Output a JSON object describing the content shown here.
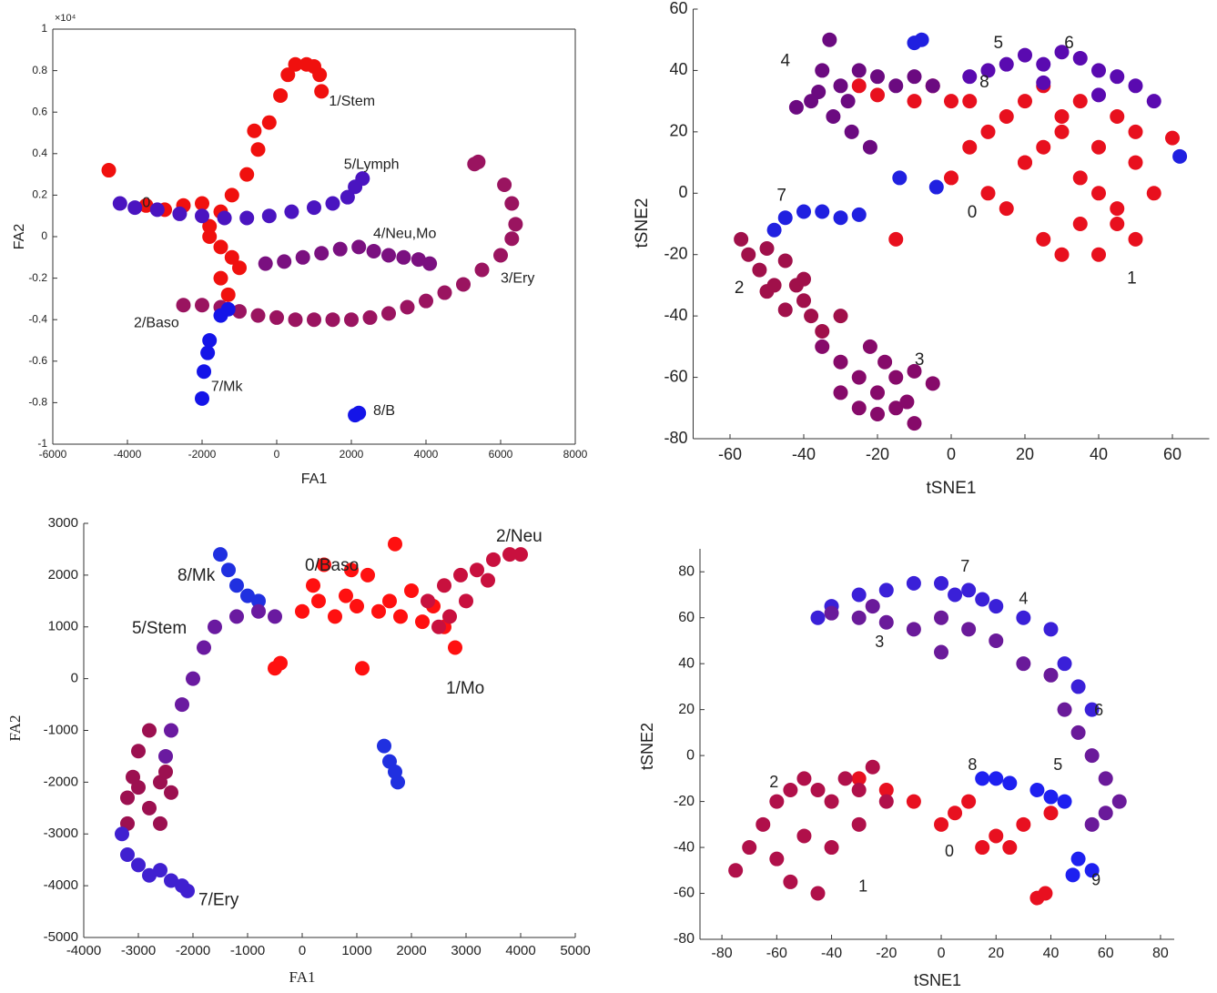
{
  "chart_data": [
    {
      "type": "scatter",
      "xlabel": "FA1",
      "ylabel": "FA2",
      "y_exponent_label": "×10⁴",
      "xlim": [
        -6000,
        8000
      ],
      "ylim": [
        -10000,
        10000
      ],
      "xticks": [
        -6000,
        -4000,
        -2000,
        0,
        2000,
        4000,
        6000,
        8000
      ],
      "yticks": [
        {
          "value": -10000,
          "label": "-1"
        },
        {
          "value": -8000,
          "label": "-0.8"
        },
        {
          "value": -6000,
          "label": "-0.6"
        },
        {
          "value": -4000,
          "label": "-0.4"
        },
        {
          "value": -2000,
          "label": "-0.2"
        },
        0,
        {
          "value": 2000,
          "label": "0.2"
        },
        {
          "value": 4000,
          "label": "0.4"
        },
        {
          "value": 6000,
          "label": "0.6"
        },
        {
          "value": 8000,
          "label": "0.8"
        },
        {
          "value": 10000,
          "label": "1"
        }
      ],
      "box": true,
      "series": [
        {
          "color": "#f0100e",
          "x": [
            -4500,
            -3500,
            -3000,
            -2500,
            -2000,
            -1500,
            -1800,
            -1500,
            -1200,
            -1500,
            -1300,
            -1000,
            -1800,
            -1200,
            -800,
            -500,
            -200,
            100,
            300,
            500,
            800,
            1000,
            1150,
            1200,
            -600
          ],
          "y": [
            3200,
            1500,
            1300,
            1500,
            1600,
            1200,
            0,
            -500,
            -1000,
            -2000,
            -2800,
            -1500,
            500,
            2000,
            3000,
            4200,
            5500,
            6800,
            7800,
            8300,
            8300,
            8200,
            7800,
            7000,
            5100
          ]
        },
        {
          "color": "#9a1460",
          "x": [
            -2500,
            -2000,
            -1500,
            -1000,
            -500,
            0,
            500,
            1000,
            1500,
            2000,
            2500,
            3000,
            3500,
            4000,
            4500,
            5000,
            5500,
            6000,
            6300,
            6400,
            6300,
            6100,
            5400,
            5300
          ],
          "y": [
            -3300,
            -3300,
            -3400,
            -3600,
            -3800,
            -3900,
            -4000,
            -4000,
            -4000,
            -4000,
            -3900,
            -3700,
            -3400,
            -3100,
            -2700,
            -2300,
            -1600,
            -900,
            -100,
            600,
            1600,
            2500,
            3600,
            3500
          ]
        },
        {
          "color": "#4a14c0",
          "x": [
            -4200,
            -3800,
            -3200,
            -2600,
            -2000,
            -1400,
            -800,
            -200,
            400,
            1000,
            1500,
            1900,
            2100,
            2300
          ],
          "y": [
            1600,
            1400,
            1300,
            1100,
            1000,
            900,
            900,
            1000,
            1200,
            1400,
            1600,
            1900,
            2400,
            2800
          ]
        },
        {
          "color": "#7a1080",
          "x": [
            -300,
            200,
            700,
            1200,
            1700,
            2200,
            2600,
            3000,
            3400,
            3800,
            4100
          ],
          "y": [
            -1300,
            -1200,
            -1000,
            -800,
            -600,
            -500,
            -700,
            -900,
            -1000,
            -1100,
            -1300
          ]
        },
        {
          "color": "#1414e8",
          "x": [
            -1500,
            -1300,
            -1800,
            -1850,
            -1950,
            -2000,
            2100,
            2200
          ],
          "y": [
            -3800,
            -3500,
            -5000,
            -5600,
            -6500,
            -7800,
            -8600,
            -8500
          ]
        }
      ],
      "annotations": [
        {
          "text": "0",
          "x": -3600,
          "y": 1600
        },
        {
          "text": "1/Stem",
          "x": 1400,
          "y": 6500
        },
        {
          "text": "5/Lymph",
          "x": 1800,
          "y": 3460
        },
        {
          "text": "4/Neu,Mo",
          "x": 2585,
          "y": 130
        },
        {
          "text": "3/Ery",
          "x": 6000,
          "y": -2020
        },
        {
          "text": "2/Baso",
          "x": -3830,
          "y": -4170
        },
        {
          "text": "7/Mk",
          "x": -1760,
          "y": -7240
        },
        {
          "text": "8/B",
          "x": 2585,
          "y": -8420
        }
      ]
    },
    {
      "type": "scatter",
      "xlabel": "tSNE1",
      "ylabel": "tSNE2",
      "xlim": [
        -70,
        70
      ],
      "ylim": [
        -80,
        60
      ],
      "xticks": [
        -60,
        -40,
        -20,
        0,
        20,
        40,
        60
      ],
      "yticks": [
        -80,
        -60,
        -40,
        -20,
        0,
        20,
        40,
        60
      ],
      "box": false,
      "series": [
        {
          "color": "#e8101e",
          "x": [
            5,
            10,
            15,
            20,
            25,
            30,
            35,
            40,
            45,
            50,
            10,
            15,
            20,
            25,
            30,
            35,
            40,
            45,
            50,
            55,
            20,
            25,
            30,
            35,
            40,
            45,
            50,
            -10,
            -5,
            0,
            60,
            -25,
            -20,
            -15,
            0,
            5
          ],
          "y": [
            15,
            20,
            25,
            10,
            15,
            20,
            5,
            0,
            -10,
            -15,
            0,
            -5,
            10,
            -15,
            -20,
            -10,
            -20,
            -5,
            10,
            0,
            30,
            35,
            25,
            30,
            15,
            25,
            20,
            30,
            35,
            30,
            18,
            35,
            32,
            -15,
            5,
            30
          ]
        },
        {
          "color": "#5a0ab0",
          "x": [
            10,
            15,
            20,
            25,
            30,
            35,
            40,
            45,
            50,
            5,
            25,
            40,
            55
          ],
          "y": [
            40,
            42,
            45,
            42,
            46,
            44,
            40,
            38,
            35,
            38,
            36,
            32,
            30
          ]
        },
        {
          "color": "#6b0a80",
          "x": [
            -42,
            -38,
            -35,
            -33,
            -30,
            -28,
            -32,
            -36,
            -25,
            -20,
            -15,
            -10,
            -5,
            -27,
            -22
          ],
          "y": [
            28,
            30,
            40,
            50,
            35,
            30,
            25,
            33,
            40,
            38,
            35,
            38,
            35,
            20,
            15
          ]
        },
        {
          "color": "#2020e0",
          "x": [
            -48,
            -45,
            -40,
            -35,
            -30,
            -25,
            -10,
            -8,
            62,
            -14,
            -4
          ],
          "y": [
            -12,
            -8,
            -6,
            -6,
            -8,
            -7,
            49,
            50,
            12,
            5,
            2
          ]
        },
        {
          "color": "#a0104a",
          "x": [
            -57,
            -55,
            -52,
            -50,
            -48,
            -45,
            -42,
            -40,
            -38,
            -35,
            -50,
            -45,
            -40,
            -30
          ],
          "y": [
            -15,
            -20,
            -25,
            -18,
            -30,
            -22,
            -30,
            -35,
            -40,
            -45,
            -32,
            -38,
            -28,
            -40
          ]
        },
        {
          "color": "#860a6a",
          "x": [
            -35,
            -30,
            -25,
            -20,
            -15,
            -10,
            -5,
            -25,
            -20,
            -15,
            -10,
            -30,
            -22,
            -18,
            -12
          ],
          "y": [
            -50,
            -55,
            -60,
            -65,
            -60,
            -58,
            -62,
            -70,
            -72,
            -70,
            -75,
            -65,
            -50,
            -55,
            -68
          ]
        }
      ],
      "annotations": [
        {
          "text": "4",
          "x": -45,
          "y": 43
        },
        {
          "text": "5",
          "x": 12.8,
          "y": 48.7
        },
        {
          "text": "6",
          "x": 32,
          "y": 48.7
        },
        {
          "text": "8",
          "x": 9,
          "y": 36
        },
        {
          "text": "7",
          "x": -46,
          "y": -1
        },
        {
          "text": "0",
          "x": 5.7,
          "y": -6.5
        },
        {
          "text": "1",
          "x": 49,
          "y": -28
        },
        {
          "text": "2",
          "x": -57.5,
          "y": -31
        },
        {
          "text": "3",
          "x": -8.6,
          "y": -54.5
        }
      ]
    },
    {
      "type": "scatter",
      "xlabel": "FA1",
      "ylabel": "FA2",
      "xlim": [
        -4000,
        5000
      ],
      "ylim": [
        -5000,
        3000
      ],
      "xticks": [
        -4000,
        -3000,
        -2000,
        -1000,
        0,
        1000,
        2000,
        3000,
        4000,
        5000
      ],
      "yticks": [
        -5000,
        -4000,
        -3000,
        -2000,
        -1000,
        0,
        1000,
        2000,
        3000
      ],
      "box": false,
      "series": [
        {
          "color": "#ff1010",
          "x": [
            0,
            300,
            600,
            1000,
            1400,
            1800,
            2200,
            2600,
            2800,
            200,
            400,
            800,
            1200,
            1600,
            2000,
            2400,
            -400,
            -500,
            1700,
            1100,
            900
          ],
          "y": [
            1300,
            1500,
            1200,
            1400,
            1300,
            1200,
            1100,
            1000,
            600,
            1800,
            2200,
            1600,
            2000,
            1500,
            1700,
            1400,
            300,
            200,
            2600,
            200,
            2100
          ]
        },
        {
          "color": "#c8103e",
          "x": [
            2300,
            2600,
            2900,
            3200,
            3500,
            3800,
            4000,
            3400,
            3000,
            2700,
            2500
          ],
          "y": [
            1500,
            1800,
            2000,
            2100,
            2300,
            2400,
            2400,
            1900,
            1500,
            1200,
            1000
          ]
        },
        {
          "color": "#2030e0",
          "x": [
            -1500,
            -1350,
            -1200,
            -1000,
            -800,
            1500,
            1600,
            1700,
            1750
          ],
          "y": [
            2400,
            2100,
            1800,
            1600,
            1500,
            -1300,
            -1600,
            -1800,
            -2000
          ]
        },
        {
          "color": "#6a1aa0",
          "x": [
            -1600,
            -1200,
            -800,
            -500,
            -1800,
            -2000,
            -2200,
            -2400,
            -2500
          ],
          "y": [
            1000,
            1200,
            1300,
            1200,
            600,
            0,
            -500,
            -1000,
            -1500
          ]
        },
        {
          "color": "#9c1050",
          "x": [
            -2800,
            -3000,
            -3100,
            -3200,
            -3200,
            -3000,
            -2800,
            -2600,
            -2500,
            -2600,
            -2400
          ],
          "y": [
            -1000,
            -1400,
            -1900,
            -2300,
            -2800,
            -2100,
            -2500,
            -2000,
            -1800,
            -2800,
            -2200
          ]
        },
        {
          "color": "#4020d0",
          "x": [
            -3300,
            -3200,
            -3000,
            -2800,
            -2600,
            -2400,
            -2200,
            -2100
          ],
          "y": [
            -3000,
            -3400,
            -3600,
            -3800,
            -3700,
            -3900,
            -4000,
            -4100
          ]
        }
      ],
      "annotations": [
        {
          "text": "8/Mk",
          "x": -2283,
          "y": 1980
        },
        {
          "text": "0/Baso",
          "x": 50,
          "y": 2170
        },
        {
          "text": "2/Neu",
          "x": 3550,
          "y": 2740
        },
        {
          "text": "5/Stem",
          "x": -3117,
          "y": 960
        },
        {
          "text": "1/Mo",
          "x": 2633,
          "y": -200
        },
        {
          "text": "7/Ery",
          "x": -1900,
          "y": -4290
        }
      ]
    },
    {
      "type": "scatter",
      "xlabel": "tSNE1",
      "ylabel": "tSNE2",
      "xlim": [
        -88,
        85
      ],
      "ylim": [
        -80,
        90
      ],
      "xticks": [
        -80,
        -60,
        -40,
        -20,
        0,
        20,
        40,
        60,
        80
      ],
      "yticks": [
        -80,
        -60,
        -40,
        -20,
        0,
        20,
        40,
        60,
        80
      ],
      "box": false,
      "series": [
        {
          "color": "#3a20d8",
          "x": [
            -40,
            -30,
            -20,
            -10,
            0,
            10,
            20,
            30,
            40,
            45,
            50,
            55,
            -45,
            5,
            15
          ],
          "y": [
            65,
            70,
            72,
            75,
            75,
            72,
            65,
            60,
            55,
            40,
            30,
            20,
            60,
            70,
            68
          ]
        },
        {
          "color": "#6a1a9a",
          "x": [
            -40,
            -30,
            -20,
            -10,
            0,
            10,
            20,
            30,
            40,
            45,
            50,
            55,
            60,
            65,
            55,
            60,
            -25,
            0
          ],
          "y": [
            62,
            60,
            58,
            55,
            60,
            55,
            50,
            40,
            35,
            20,
            10,
            0,
            -10,
            -20,
            -30,
            -25,
            65,
            45
          ]
        },
        {
          "color": "#e81020",
          "x": [
            -10,
            0,
            5,
            10,
            20,
            30,
            40,
            35,
            38,
            -20,
            -30,
            15,
            25
          ],
          "y": [
            -20,
            -30,
            -25,
            -20,
            -35,
            -30,
            -25,
            -62,
            -60,
            -15,
            -10,
            -40,
            -40
          ]
        },
        {
          "color": "#b0104a",
          "x": [
            -75,
            -70,
            -65,
            -60,
            -55,
            -50,
            -45,
            -40,
            -35,
            -30,
            -25,
            -20,
            -60,
            -50,
            -40,
            -30,
            -45,
            -55
          ],
          "y": [
            -50,
            -40,
            -30,
            -20,
            -15,
            -10,
            -15,
            -20,
            -10,
            -15,
            -5,
            -20,
            -45,
            -35,
            -40,
            -30,
            -60,
            -55
          ]
        },
        {
          "color": "#1e20f0",
          "x": [
            15,
            20,
            25,
            35,
            40,
            45,
            50,
            55,
            48
          ],
          "y": [
            -10,
            -10,
            -12,
            -15,
            -18,
            -20,
            -45,
            -50,
            -52
          ]
        }
      ],
      "annotations": [
        {
          "text": "7",
          "x": 8.7,
          "y": 82
        },
        {
          "text": "4",
          "x": 30,
          "y": 68
        },
        {
          "text": "3",
          "x": -22.5,
          "y": 49
        },
        {
          "text": "6",
          "x": 57.5,
          "y": 19.4
        },
        {
          "text": "8",
          "x": 11.4,
          "y": -4.4
        },
        {
          "text": "5",
          "x": 42.6,
          "y": -4.4
        },
        {
          "text": "2",
          "x": -61,
          "y": -12
        },
        {
          "text": "0",
          "x": 3,
          "y": -42
        },
        {
          "text": "9",
          "x": 56.5,
          "y": -54.6
        },
        {
          "text": "1",
          "x": -28.5,
          "y": -57.4
        }
      ]
    }
  ]
}
